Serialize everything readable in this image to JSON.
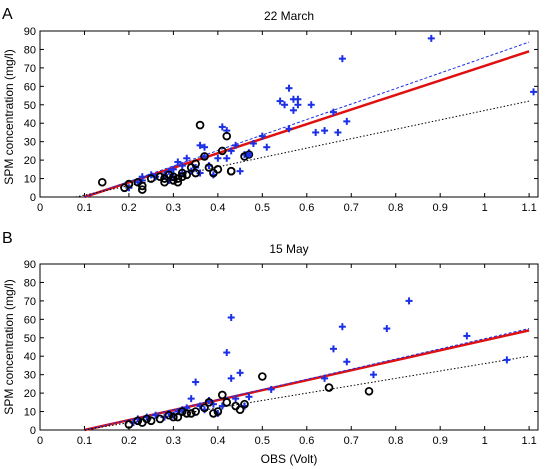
{
  "colors": {
    "blue": "#1a2fe6",
    "red": "#e01010",
    "black": "#000000"
  },
  "chart_data": [
    {
      "type": "scatter",
      "panel_label": "A",
      "title": "22 March",
      "xlabel": "",
      "ylabel": "SPM concentration (mg/l)",
      "xlim": [
        0,
        1.12
      ],
      "ylim": [
        0,
        90
      ],
      "x_ticks": [
        "0",
        "0.1",
        "0.2",
        "0.3",
        "0.4",
        "0.5",
        "0.6",
        "0.7",
        "0.8",
        "0.9",
        "1",
        "1.1"
      ],
      "y_ticks": [
        "0",
        "10",
        "20",
        "30",
        "40",
        "50",
        "60",
        "70",
        "80",
        "90"
      ],
      "series": [
        {
          "marker": "plus",
          "color": "#1a2fe6",
          "points": [
            [
              0.2,
              5
            ],
            [
              0.22,
              8
            ],
            [
              0.23,
              9
            ],
            [
              0.23,
              11
            ],
            [
              0.25,
              12
            ],
            [
              0.26,
              11
            ],
            [
              0.28,
              12
            ],
            [
              0.29,
              9
            ],
            [
              0.29,
              14
            ],
            [
              0.3,
              11
            ],
            [
              0.3,
              15
            ],
            [
              0.31,
              19
            ],
            [
              0.32,
              17
            ],
            [
              0.32,
              13
            ],
            [
              0.33,
              21
            ],
            [
              0.34,
              14
            ],
            [
              0.35,
              16
            ],
            [
              0.36,
              13
            ],
            [
              0.36,
              28
            ],
            [
              0.37,
              27
            ],
            [
              0.37,
              22
            ],
            [
              0.38,
              17
            ],
            [
              0.39,
              12
            ],
            [
              0.4,
              21
            ],
            [
              0.41,
              38
            ],
            [
              0.42,
              36
            ],
            [
              0.42,
              21
            ],
            [
              0.43,
              25
            ],
            [
              0.44,
              28
            ],
            [
              0.45,
              14
            ],
            [
              0.46,
              23
            ],
            [
              0.47,
              24
            ],
            [
              0.48,
              29
            ],
            [
              0.5,
              33
            ],
            [
              0.51,
              27
            ],
            [
              0.54,
              52
            ],
            [
              0.55,
              50
            ],
            [
              0.56,
              59
            ],
            [
              0.56,
              37
            ],
            [
              0.57,
              47
            ],
            [
              0.57,
              53
            ],
            [
              0.58,
              50
            ],
            [
              0.58,
              53
            ],
            [
              0.61,
              50
            ],
            [
              0.62,
              35
            ],
            [
              0.64,
              36
            ],
            [
              0.66,
              46
            ],
            [
              0.67,
              35
            ],
            [
              0.68,
              75
            ],
            [
              0.69,
              41
            ],
            [
              0.88,
              86
            ],
            [
              1.11,
              57
            ]
          ]
        },
        {
          "marker": "circle",
          "color": "#000000",
          "points": [
            [
              0.14,
              8
            ],
            [
              0.19,
              5
            ],
            [
              0.2,
              7
            ],
            [
              0.22,
              8
            ],
            [
              0.23,
              6
            ],
            [
              0.23,
              4
            ],
            [
              0.25,
              10
            ],
            [
              0.27,
              11
            ],
            [
              0.28,
              10
            ],
            [
              0.28,
              8
            ],
            [
              0.29,
              12
            ],
            [
              0.3,
              11
            ],
            [
              0.3,
              9
            ],
            [
              0.31,
              8
            ],
            [
              0.31,
              10
            ],
            [
              0.32,
              13
            ],
            [
              0.32,
              11
            ],
            [
              0.33,
              12
            ],
            [
              0.34,
              16
            ],
            [
              0.35,
              13
            ],
            [
              0.35,
              18
            ],
            [
              0.36,
              39
            ],
            [
              0.37,
              22
            ],
            [
              0.38,
              16
            ],
            [
              0.39,
              13
            ],
            [
              0.4,
              15
            ],
            [
              0.41,
              25
            ],
            [
              0.42,
              33
            ],
            [
              0.43,
              14
            ],
            [
              0.43,
              14
            ],
            [
              0.46,
              22
            ]
          ]
        },
        {
          "marker": "dot",
          "color": "#1a2fe6",
          "points": [
            [
              0.47,
              23
            ]
          ]
        }
      ],
      "lines": [
        {
          "style": "solid",
          "color": "#e01010",
          "from": [
            0.1,
            0
          ],
          "to": [
            1.1,
            79
          ]
        },
        {
          "style": "dashed",
          "color": "#1a2fe6",
          "from": [
            0.1,
            0
          ],
          "to": [
            1.1,
            84
          ]
        },
        {
          "style": "dotted",
          "color": "#000000",
          "from": [
            0.08,
            0
          ],
          "to": [
            1.1,
            52
          ]
        }
      ]
    },
    {
      "type": "scatter",
      "panel_label": "B",
      "title": "15 May",
      "xlabel": "OBS (Volt)",
      "ylabel": "SPM concentration (mg/l)",
      "xlim": [
        0,
        1.12
      ],
      "ylim": [
        0,
        90
      ],
      "x_ticks": [
        "0",
        "0.1",
        "0.2",
        "0.3",
        "0.4",
        "0.5",
        "0.6",
        "0.7",
        "0.8",
        "0.9",
        "1",
        "1.1"
      ],
      "y_ticks": [
        "0",
        "10",
        "20",
        "30",
        "40",
        "50",
        "60",
        "70",
        "80",
        "90"
      ],
      "series": [
        {
          "marker": "plus",
          "color": "#1a2fe6",
          "points": [
            [
              0.21,
              4
            ],
            [
              0.22,
              6
            ],
            [
              0.24,
              7
            ],
            [
              0.26,
              8
            ],
            [
              0.28,
              7
            ],
            [
              0.29,
              9
            ],
            [
              0.3,
              8
            ],
            [
              0.31,
              10
            ],
            [
              0.32,
              11
            ],
            [
              0.33,
              12
            ],
            [
              0.34,
              17
            ],
            [
              0.35,
              26
            ],
            [
              0.36,
              13
            ],
            [
              0.37,
              11
            ],
            [
              0.38,
              16
            ],
            [
              0.39,
              14
            ],
            [
              0.4,
              9
            ],
            [
              0.41,
              13
            ],
            [
              0.42,
              42
            ],
            [
              0.43,
              61
            ],
            [
              0.43,
              28
            ],
            [
              0.44,
              17
            ],
            [
              0.45,
              31
            ],
            [
              0.46,
              13
            ],
            [
              0.47,
              18
            ],
            [
              0.52,
              22
            ],
            [
              0.64,
              28
            ],
            [
              0.66,
              44
            ],
            [
              0.68,
              56
            ],
            [
              0.69,
              37
            ],
            [
              0.75,
              30
            ],
            [
              0.78,
              55
            ],
            [
              0.83,
              70
            ],
            [
              0.96,
              51
            ],
            [
              1.05,
              38
            ]
          ]
        },
        {
          "marker": "circle",
          "color": "#000000",
          "points": [
            [
              0.2,
              3
            ],
            [
              0.22,
              5
            ],
            [
              0.23,
              4
            ],
            [
              0.24,
              6
            ],
            [
              0.25,
              5
            ],
            [
              0.27,
              6
            ],
            [
              0.29,
              8
            ],
            [
              0.3,
              7
            ],
            [
              0.31,
              7
            ],
            [
              0.32,
              10
            ],
            [
              0.33,
              9
            ],
            [
              0.34,
              9
            ],
            [
              0.35,
              10
            ],
            [
              0.37,
              12
            ],
            [
              0.38,
              15
            ],
            [
              0.39,
              9
            ],
            [
              0.4,
              10
            ],
            [
              0.41,
              19
            ],
            [
              0.42,
              15
            ],
            [
              0.44,
              13
            ],
            [
              0.45,
              11
            ],
            [
              0.46,
              14
            ],
            [
              0.5,
              29
            ],
            [
              0.65,
              23
            ],
            [
              0.74,
              21
            ]
          ]
        }
      ],
      "lines": [
        {
          "style": "solid",
          "color": "#e01010",
          "from": [
            0.1,
            0
          ],
          "to": [
            1.1,
            54
          ]
        },
        {
          "style": "dashed",
          "color": "#1a2fe6",
          "from": [
            0.1,
            0
          ],
          "to": [
            1.1,
            55
          ]
        },
        {
          "style": "dotted",
          "color": "#000000",
          "from": [
            0.1,
            0
          ],
          "to": [
            1.1,
            40
          ]
        }
      ]
    }
  ]
}
